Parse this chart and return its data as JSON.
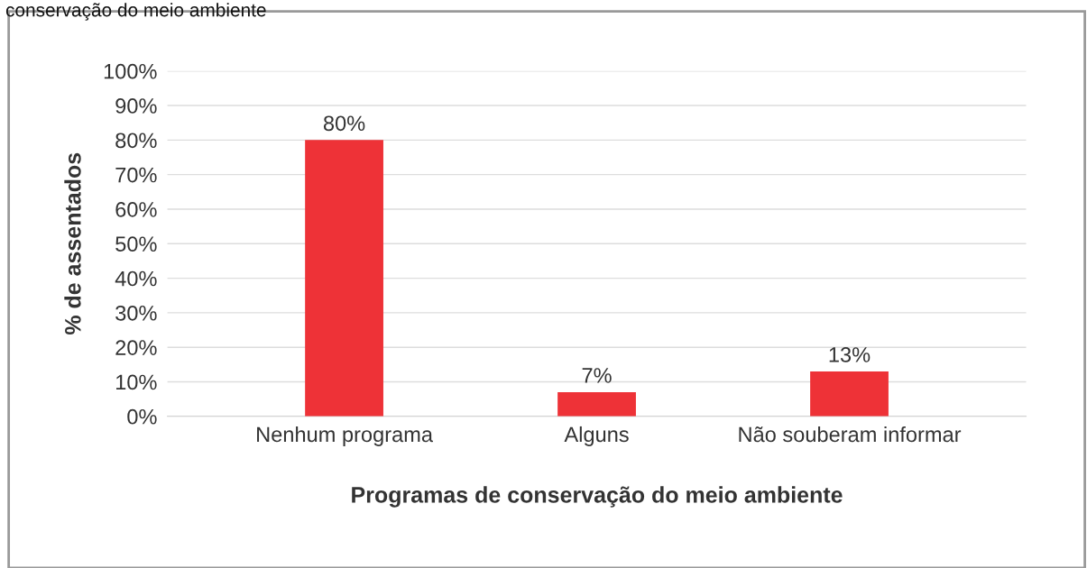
{
  "chart_data": {
    "type": "bar",
    "title": "conservação do meio ambiente",
    "xlabel": "Programas de conservação do meio ambiente",
    "ylabel": "% de assentados",
    "categories": [
      "Nenhum programa",
      "Alguns",
      "Não souberam informar"
    ],
    "values": [
      80,
      7,
      13
    ],
    "color": "#ee3237",
    "value_labels": [
      "80%",
      "7%",
      "13%"
    ],
    "ylim": [
      0,
      100
    ],
    "yticks": [
      {
        "value": 0,
        "label": "0%"
      },
      {
        "value": 10,
        "label": "10%"
      },
      {
        "value": 20,
        "label": "20%"
      },
      {
        "value": 30,
        "label": "30%"
      },
      {
        "value": 40,
        "label": "40%"
      },
      {
        "value": 50,
        "label": "50%"
      },
      {
        "value": 60,
        "label": "60%"
      },
      {
        "value": 70,
        "label": "70%"
      },
      {
        "value": 80,
        "label": "80%"
      },
      {
        "value": 90,
        "label": "90%"
      },
      {
        "value": 100,
        "label": "100%"
      }
    ],
    "grid": "y",
    "legend": false
  }
}
